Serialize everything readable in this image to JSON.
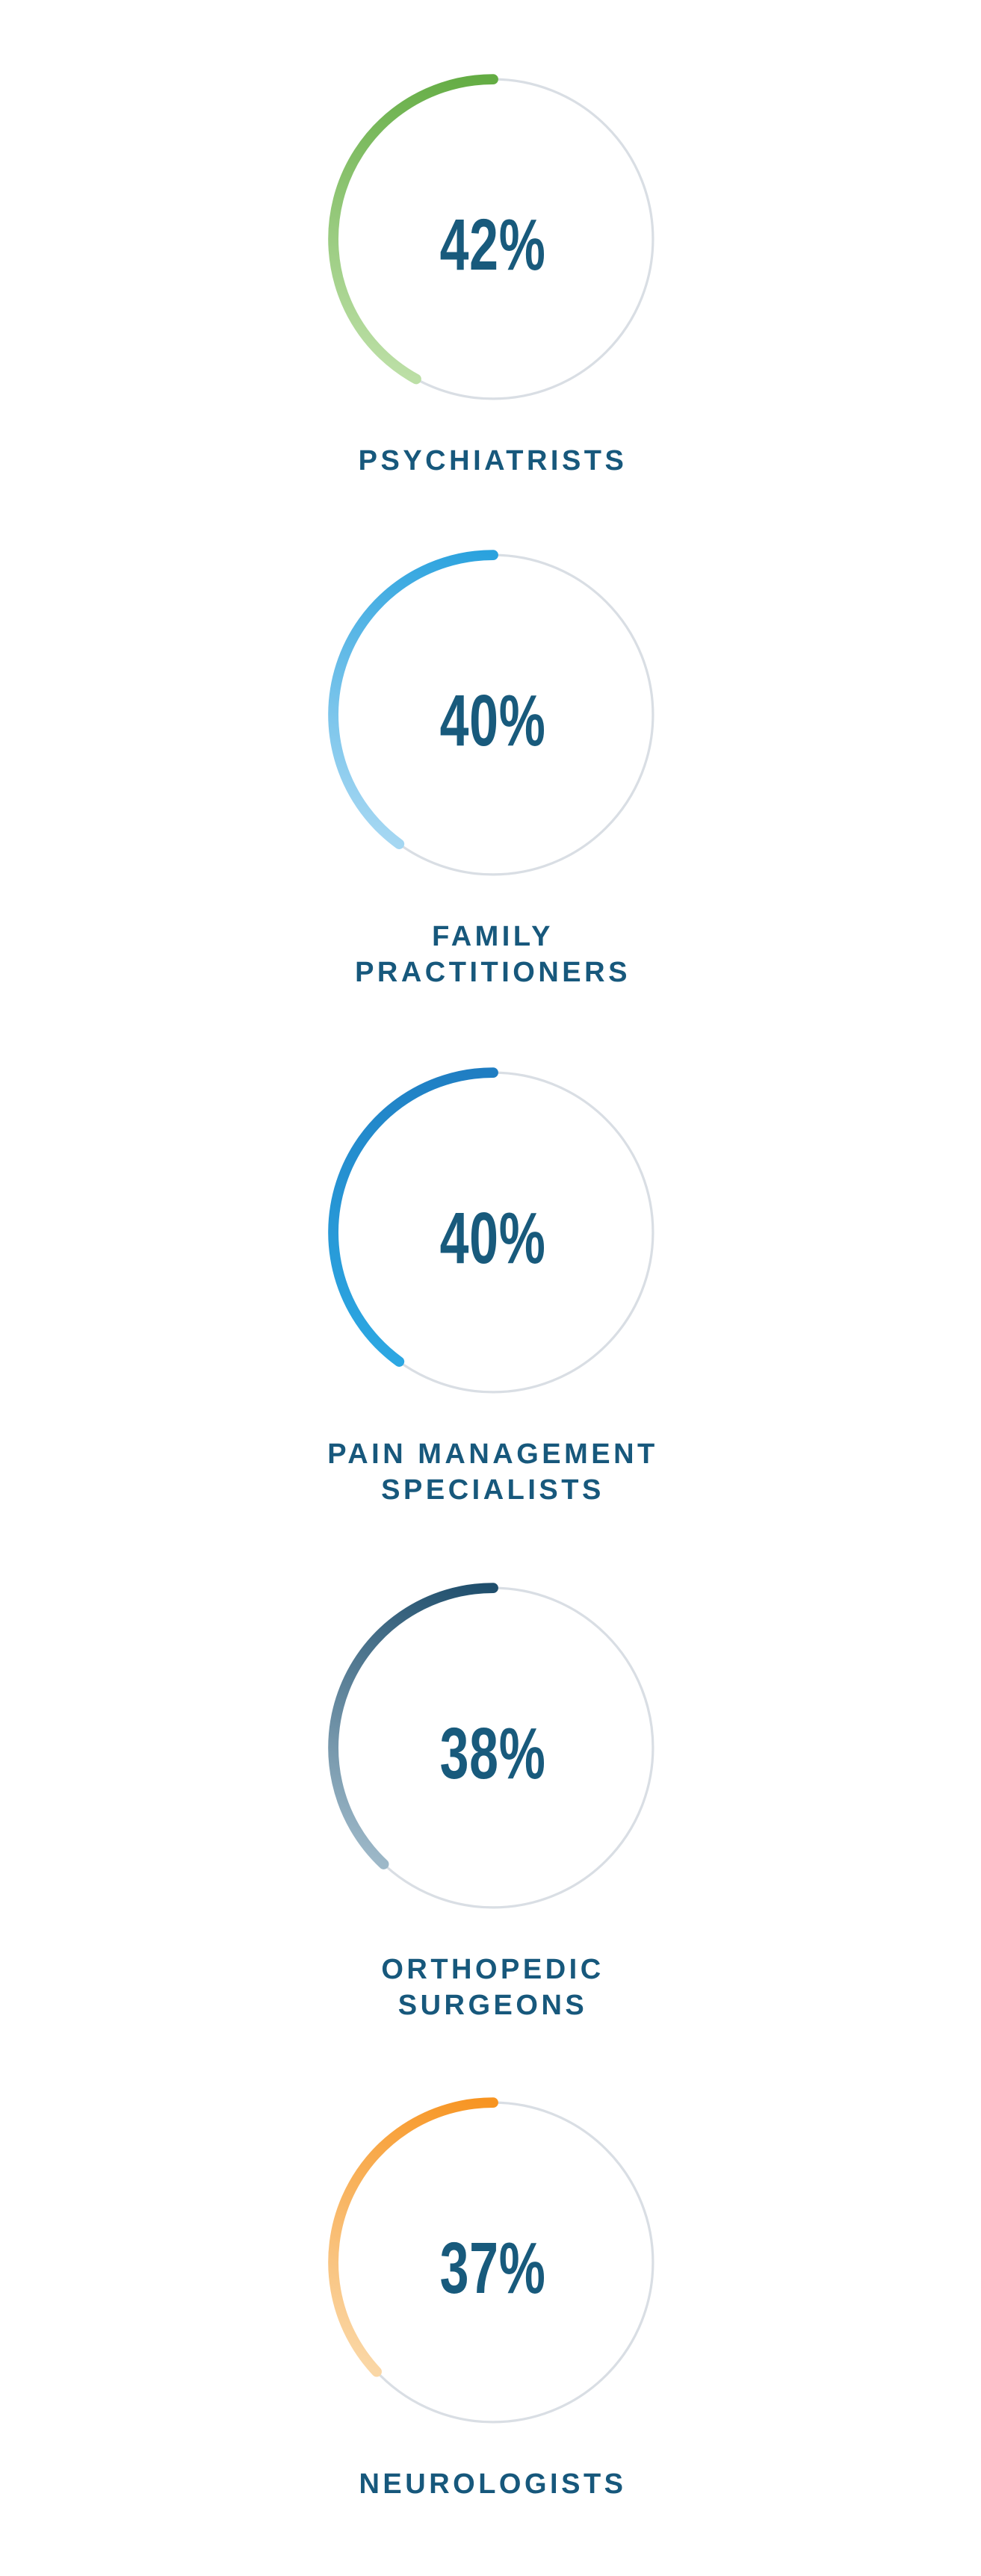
{
  "page": {
    "background_color": "#ffffff",
    "track_color": "#D9DEE4",
    "value_color": "#185A7C",
    "label_color": "#17587C"
  },
  "chart_data": {
    "type": "donut-gauge-list",
    "description": "Five circular progress gauges, arc starts at 12 o'clock and sweeps counterclockwise, percentage value centered inside each ring",
    "unit": "%",
    "categories": [
      "PSYCHIATRISTS",
      "FAMILY PRACTITIONERS",
      "PAIN MANAGEMENT SPECIALISTS",
      "ORTHOPEDIC SURGEONS",
      "NEUROLOGISTS"
    ],
    "values": [
      42,
      40,
      40,
      38,
      37
    ],
    "track_color": "#D9DEE4",
    "legend": "none",
    "grid": "off"
  },
  "charts": [
    {
      "label": "PSYCHIATRISTS",
      "value": 42,
      "value_text": "42%",
      "arc_start_color": "#63AC43",
      "arc_end_color": "#BCDFA6"
    },
    {
      "label": "FAMILY\nPRACTITIONERS",
      "value": 40,
      "value_text": "40%",
      "arc_start_color": "#2AA2DE",
      "arc_end_color": "#A5D7F2"
    },
    {
      "label": "PAIN MANAGEMENT\nSPECIALISTS",
      "value": 40,
      "value_text": "40%",
      "arc_start_color": "#1F7DC2",
      "arc_end_color": "#2CA7E2"
    },
    {
      "label": "ORTHOPEDIC\nSURGEONS",
      "value": 38,
      "value_text": "38%",
      "arc_start_color": "#1F4E6C",
      "arc_end_color": "#9DB8C8"
    },
    {
      "label": "NEUROLOGISTS",
      "value": 37,
      "value_text": "37%",
      "arc_start_color": "#F79421",
      "arc_end_color": "#FAD7A6"
    }
  ]
}
